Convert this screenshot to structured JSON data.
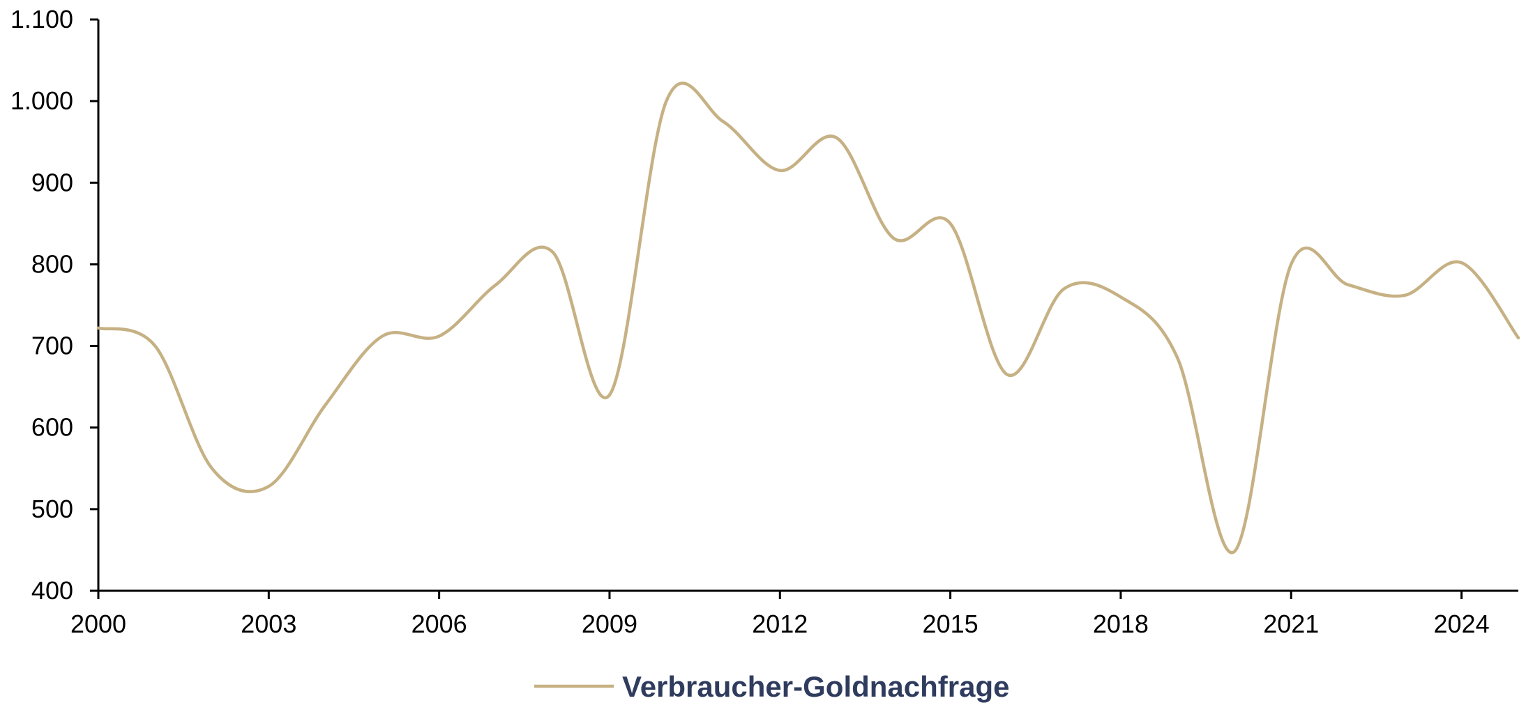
{
  "chart_data": {
    "type": "line",
    "title": "",
    "xlabel": "",
    "ylabel": "",
    "x": [
      2000,
      2001,
      2002,
      2003,
      2004,
      2005,
      2006,
      2007,
      2008,
      2009,
      2010,
      2011,
      2012,
      2013,
      2014,
      2015,
      2016,
      2017,
      2018,
      2019,
      2020,
      2021,
      2022,
      2023,
      2024,
      2025
    ],
    "series": [
      {
        "name": "Verbraucher-Goldnachfrage",
        "color": "#c6b184",
        "values": [
          722,
          700,
          550,
          528,
          628,
          712,
          712,
          775,
          815,
          640,
          1000,
          975,
          915,
          955,
          832,
          850,
          665,
          770,
          760,
          685,
          448,
          800,
          775,
          762,
          802,
          710
        ]
      }
    ],
    "ylim": [
      400,
      1100
    ],
    "xlim": [
      2000,
      2025
    ],
    "y_ticks": [
      400,
      500,
      600,
      700,
      800,
      900,
      1000,
      1100
    ],
    "y_tick_labels": [
      "400",
      "500",
      "600",
      "700",
      "800",
      "900",
      "1.000",
      "1.100"
    ],
    "x_ticks": [
      2000,
      2003,
      2006,
      2009,
      2012,
      2015,
      2018,
      2021,
      2024
    ],
    "x_tick_labels": [
      "2000",
      "2003",
      "2006",
      "2009",
      "2012",
      "2015",
      "2018",
      "2021",
      "2024"
    ],
    "grid": false,
    "legend_position": "bottom-center",
    "axis_color": "#000000",
    "legend_text_color": "#2f3c5e"
  }
}
